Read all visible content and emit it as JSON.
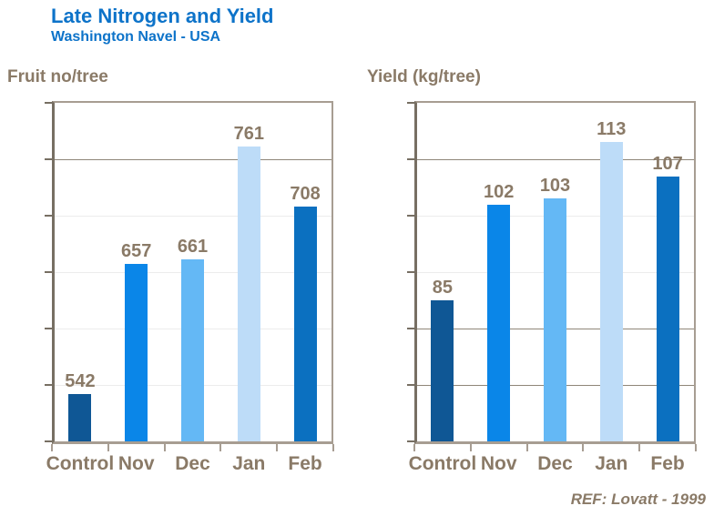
{
  "header": {
    "title": "Late Nitrogen and Yield",
    "subtitle": "Washington Navel - USA"
  },
  "footer": {
    "ref": "REF: Lovatt - 1999"
  },
  "colors": {
    "title_blue": "#0d73c9",
    "text_brown": "#8a7a67",
    "border_tan": "#a79d92",
    "axis_dark": "#776f63",
    "grid_light": "#ececec",
    "grid_dark": "#8f8679"
  },
  "chart_data": [
    {
      "type": "bar",
      "title": "Fruit no/tree",
      "categories": [
        "Control",
        "Nov",
        "Dec",
        "Jan",
        "Feb"
      ],
      "values": [
        542,
        657,
        661,
        761,
        708
      ],
      "bar_colors": [
        "#0f5795",
        "#0a86e8",
        "#64b8f5",
        "#bddcf8",
        "#0b70c0"
      ],
      "ylim": [
        500,
        800
      ],
      "yticks": [
        800,
        750,
        700,
        650,
        600,
        550,
        500
      ],
      "gridlines": [
        {
          "value": 750,
          "emphasis": "dark"
        },
        {
          "value": 700,
          "emphasis": "light"
        },
        {
          "value": 650,
          "emphasis": "light"
        },
        {
          "value": 600,
          "emphasis": "light"
        },
        {
          "value": 550,
          "emphasis": "light"
        }
      ],
      "data_labels": true,
      "legend": "none",
      "grid": true
    },
    {
      "type": "bar",
      "title": "Yield (kg/tree)",
      "categories": [
        "Control",
        "Nov",
        "Dec",
        "Jan",
        "Feb"
      ],
      "values": [
        85,
        102,
        103,
        113,
        107
      ],
      "bar_colors": [
        "#0f5795",
        "#0a86e8",
        "#64b8f5",
        "#bddcf8",
        "#0b70c0"
      ],
      "ylim": [
        60,
        120
      ],
      "yticks": [
        120,
        110,
        100,
        90,
        80,
        70,
        60
      ],
      "gridlines": [
        {
          "value": 110,
          "emphasis": "dark"
        },
        {
          "value": 100,
          "emphasis": "light"
        },
        {
          "value": 90,
          "emphasis": "light"
        },
        {
          "value": 80,
          "emphasis": "dark"
        },
        {
          "value": 70,
          "emphasis": "dark"
        }
      ],
      "data_labels": true,
      "legend": "none",
      "grid": true
    }
  ]
}
